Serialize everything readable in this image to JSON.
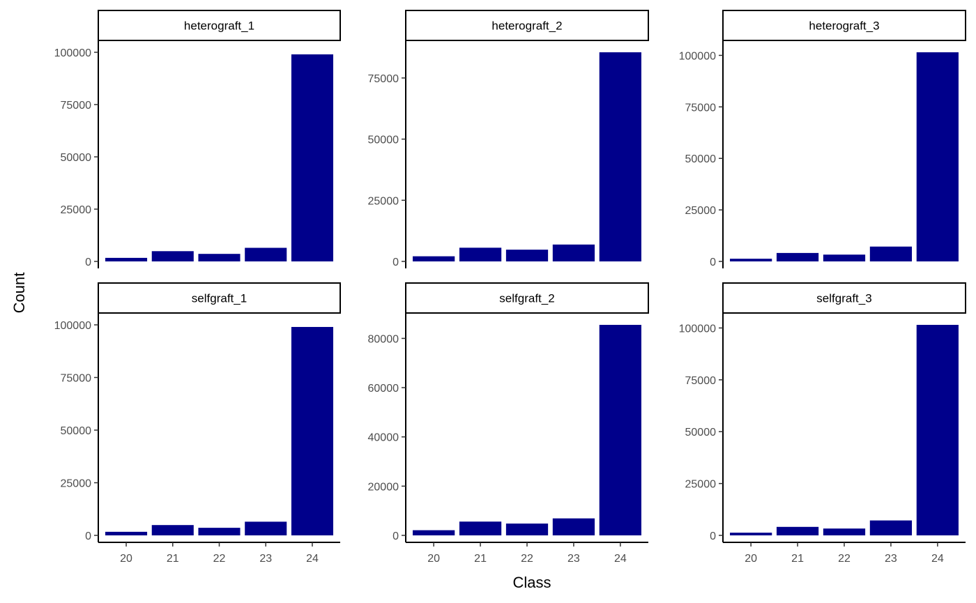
{
  "chart_data": {
    "type": "bar",
    "xlabel": "Class",
    "ylabel": "Count",
    "categories": [
      "20",
      "21",
      "22",
      "23",
      "24"
    ],
    "bar_color": "#00008B",
    "grid": false,
    "facets": [
      {
        "name": "heterograft_1",
        "values": [
          1700,
          4900,
          3600,
          6500,
          99000
        ],
        "ylim": [
          0,
          100000
        ],
        "yticks": [
          0,
          25000,
          50000,
          75000,
          100000
        ],
        "ytick_labels": [
          "0",
          "25000",
          "50000",
          "75000",
          "100000"
        ]
      },
      {
        "name": "heterograft_2",
        "values": [
          2100,
          5600,
          4800,
          6900,
          85500
        ],
        "ylim": [
          0,
          85500
        ],
        "yticks": [
          0,
          25000,
          50000,
          75000
        ],
        "ytick_labels": [
          "0",
          "25000",
          "50000",
          "75000"
        ]
      },
      {
        "name": "heterograft_3",
        "values": [
          1300,
          4100,
          3300,
          7200,
          101500
        ],
        "ylim": [
          0,
          101500
        ],
        "yticks": [
          0,
          25000,
          50000,
          75000,
          100000
        ],
        "ytick_labels": [
          "0",
          "25000",
          "50000",
          "75000",
          "100000"
        ]
      },
      {
        "name": "selfgraft_1",
        "values": [
          1700,
          4900,
          3600,
          6500,
          99000
        ],
        "ylim": [
          0,
          100000
        ],
        "yticks": [
          0,
          25000,
          50000,
          75000,
          100000
        ],
        "ytick_labels": [
          "0",
          "25000",
          "50000",
          "75000",
          "100000"
        ]
      },
      {
        "name": "selfgraft_2",
        "values": [
          2100,
          5600,
          4800,
          6900,
          85500
        ],
        "ylim": [
          0,
          85500
        ],
        "yticks": [
          0,
          20000,
          40000,
          60000,
          80000
        ],
        "ytick_labels": [
          "0",
          "20000",
          "40000",
          "60000",
          "80000"
        ]
      },
      {
        "name": "selfgraft_3",
        "values": [
          1300,
          4100,
          3300,
          7200,
          101500
        ],
        "ylim": [
          0,
          101500
        ],
        "yticks": [
          0,
          25000,
          50000,
          75000,
          100000
        ],
        "ytick_labels": [
          "0",
          "25000",
          "50000",
          "75000",
          "100000"
        ]
      }
    ]
  }
}
